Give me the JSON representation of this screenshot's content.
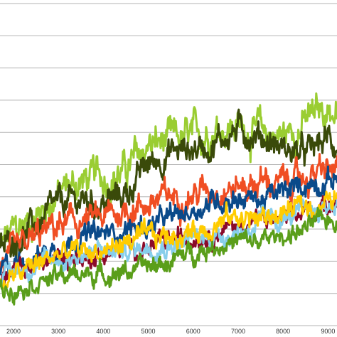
{
  "chart_data": {
    "type": "line",
    "title": "",
    "xlabel": "",
    "ylabel": "",
    "x_ticks": [
      2000,
      3000,
      4000,
      5000,
      6000,
      7000,
      8000,
      9000
    ],
    "x_tick_labels": [
      "2000",
      "3000",
      "4000",
      "5000",
      "6000",
      "7000",
      "8000",
      "9000"
    ],
    "xlim": [
      1700,
      9200
    ],
    "ylim": [
      0,
      10
    ],
    "grid": "horizontal",
    "legend": "none",
    "series": [
      {
        "color": "#9acd32",
        "noise": 0.55,
        "points": [
          [
            1700,
            2.4
          ],
          [
            2000,
            2.9
          ],
          [
            2500,
            3.4
          ],
          [
            3000,
            4.1
          ],
          [
            3500,
            4.5
          ],
          [
            4000,
            4.6
          ],
          [
            4500,
            4.8
          ],
          [
            5000,
            5.6
          ],
          [
            5500,
            5.7
          ],
          [
            6000,
            5.8
          ],
          [
            6500,
            6.2
          ],
          [
            7000,
            6.2
          ],
          [
            7500,
            6.0
          ],
          [
            8000,
            5.9
          ],
          [
            8500,
            6.3
          ],
          [
            9000,
            6.8
          ],
          [
            9200,
            6.5
          ]
        ]
      },
      {
        "color": "#3a4a0a",
        "noise": 0.45,
        "points": [
          [
            1700,
            2.3
          ],
          [
            2000,
            2.7
          ],
          [
            2500,
            3.1
          ],
          [
            3000,
            3.7
          ],
          [
            3500,
            3.9
          ],
          [
            4000,
            3.8
          ],
          [
            4500,
            4.1
          ],
          [
            5000,
            5.0
          ],
          [
            5500,
            5.4
          ],
          [
            6000,
            5.5
          ],
          [
            6500,
            5.7
          ],
          [
            7000,
            6.1
          ],
          [
            7500,
            5.9
          ],
          [
            8000,
            5.5
          ],
          [
            8500,
            5.3
          ],
          [
            9000,
            5.8
          ],
          [
            9200,
            5.6
          ]
        ]
      },
      {
        "color": "#f04e23",
        "noise": 0.45,
        "points": [
          [
            1700,
            1.9
          ],
          [
            2000,
            2.1
          ],
          [
            2500,
            2.7
          ],
          [
            3000,
            3.1
          ],
          [
            3500,
            3.2
          ],
          [
            4000,
            3.3
          ],
          [
            4500,
            3.6
          ],
          [
            5000,
            3.8
          ],
          [
            5500,
            4.0
          ],
          [
            6000,
            4.1
          ],
          [
            6500,
            4.3
          ],
          [
            7000,
            4.3
          ],
          [
            7500,
            4.5
          ],
          [
            8000,
            4.4
          ],
          [
            8500,
            4.6
          ],
          [
            9000,
            4.8
          ],
          [
            9200,
            4.8
          ]
        ]
      },
      {
        "color": "#0a4a8a",
        "noise": 0.35,
        "points": [
          [
            1700,
            1.7
          ],
          [
            2000,
            1.9
          ],
          [
            2500,
            2.2
          ],
          [
            3000,
            2.4
          ],
          [
            3500,
            2.8
          ],
          [
            4000,
            2.8
          ],
          [
            4500,
            3.0
          ],
          [
            5000,
            3.1
          ],
          [
            5500,
            3.3
          ],
          [
            6000,
            3.6
          ],
          [
            6500,
            3.9
          ],
          [
            7000,
            4.0
          ],
          [
            7500,
            3.9
          ],
          [
            8000,
            4.1
          ],
          [
            8500,
            4.4
          ],
          [
            9000,
            4.5
          ],
          [
            9200,
            4.6
          ]
        ]
      },
      {
        "color": "#8b0a2a",
        "noise": 0.3,
        "points": [
          [
            1700,
            1.4
          ],
          [
            2000,
            1.6
          ],
          [
            2500,
            1.9
          ],
          [
            3000,
            2.1
          ],
          [
            3500,
            2.1
          ],
          [
            4000,
            2.2
          ],
          [
            4500,
            2.4
          ],
          [
            5000,
            2.4
          ],
          [
            5500,
            2.6
          ],
          [
            6000,
            2.8
          ],
          [
            6500,
            2.9
          ],
          [
            7000,
            3.1
          ],
          [
            7500,
            3.3
          ],
          [
            8000,
            3.2
          ],
          [
            8500,
            3.5
          ],
          [
            9000,
            3.8
          ],
          [
            9200,
            3.9
          ]
        ]
      },
      {
        "color": "#87ceeb",
        "noise": 0.3,
        "points": [
          [
            1700,
            1.5
          ],
          [
            2000,
            1.7
          ],
          [
            2500,
            1.9
          ],
          [
            3000,
            2.0
          ],
          [
            3500,
            2.2
          ],
          [
            4000,
            2.3
          ],
          [
            4500,
            2.3
          ],
          [
            5000,
            2.5
          ],
          [
            5500,
            2.5
          ],
          [
            6000,
            2.7
          ],
          [
            6500,
            2.8
          ],
          [
            7000,
            2.9
          ],
          [
            7500,
            3.2
          ],
          [
            8000,
            3.3
          ],
          [
            8500,
            3.5
          ],
          [
            9000,
            3.7
          ],
          [
            9200,
            3.8
          ]
        ]
      },
      {
        "color": "#ffcc00",
        "noise": 0.35,
        "points": [
          [
            1700,
            1.3
          ],
          [
            2000,
            1.5
          ],
          [
            2500,
            1.9
          ],
          [
            3000,
            2.2
          ],
          [
            3500,
            2.3
          ],
          [
            4000,
            2.3
          ],
          [
            4500,
            2.6
          ],
          [
            5000,
            2.7
          ],
          [
            5500,
            2.8
          ],
          [
            6000,
            2.9
          ],
          [
            6500,
            3.2
          ],
          [
            7000,
            3.4
          ],
          [
            7500,
            3.3
          ],
          [
            8000,
            3.5
          ],
          [
            8500,
            3.7
          ],
          [
            9000,
            3.8
          ],
          [
            9200,
            4.0
          ]
        ]
      },
      {
        "color": "#5a9e1a",
        "noise": 0.3,
        "points": [
          [
            1700,
            1.1
          ],
          [
            2000,
            1.2
          ],
          [
            2500,
            1.4
          ],
          [
            3000,
            1.5
          ],
          [
            3500,
            1.6
          ],
          [
            4000,
            1.6
          ],
          [
            4500,
            1.7
          ],
          [
            5000,
            1.8
          ],
          [
            5500,
            2.0
          ],
          [
            6000,
            2.3
          ],
          [
            6500,
            2.5
          ],
          [
            7000,
            2.6
          ],
          [
            7500,
            2.6
          ],
          [
            8000,
            2.8
          ],
          [
            8500,
            3.0
          ],
          [
            9000,
            3.3
          ],
          [
            9200,
            3.3
          ]
        ]
      }
    ]
  }
}
